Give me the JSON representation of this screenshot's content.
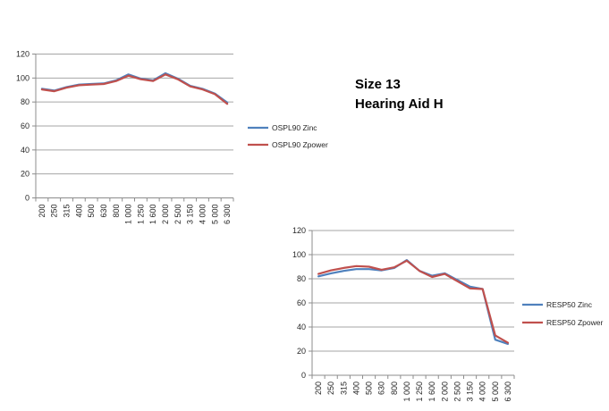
{
  "title": {
    "line1": "Size 13",
    "line2": "Hearing Aid H"
  },
  "colors": {
    "background": "#ffffff",
    "gridline": "#a6a6a6",
    "axis": "#8c8c8c",
    "tick_label": "#262626",
    "series_blue": "#4f81bd",
    "series_red": "#c0504d"
  },
  "chart_data": [
    {
      "type": "line",
      "name": "OSPL90 chart",
      "categories": [
        "200",
        "250",
        "315",
        "400",
        "500",
        "630",
        "800",
        "1 000",
        "1 250",
        "1 600",
        "2 000",
        "2 500",
        "3 150",
        "4 000",
        "5 000",
        "6 300"
      ],
      "xlabel": "",
      "ylabel": "",
      "ylim": [
        0,
        120
      ],
      "yticks": [
        0,
        20,
        40,
        60,
        80,
        100,
        120
      ],
      "grid": true,
      "legend_position": "right",
      "series": [
        {
          "name": "OSPL90 Zinc",
          "color": "#4f81bd",
          "values": [
            91,
            89.5,
            92.5,
            94.5,
            95,
            95.5,
            98,
            103,
            99.5,
            98,
            104,
            99.5,
            93.5,
            91,
            87,
            79.5
          ]
        },
        {
          "name": "OSPL90 Zpower",
          "color": "#c0504d",
          "values": [
            90.5,
            89,
            92,
            94,
            94.5,
            95,
            97.5,
            102,
            99,
            97.5,
            103,
            99,
            93,
            90.5,
            86.5,
            78.5
          ]
        }
      ]
    },
    {
      "type": "line",
      "name": "RESP50 chart",
      "categories": [
        "200",
        "250",
        "315",
        "400",
        "500",
        "630",
        "800",
        "1 000",
        "1 250",
        "1 600",
        "2 000",
        "2 500",
        "3 150",
        "4 000",
        "5 000",
        "6 300"
      ],
      "xlabel": "",
      "ylabel": "",
      "ylim": [
        0,
        120
      ],
      "yticks": [
        0,
        20,
        40,
        60,
        80,
        100,
        120
      ],
      "grid": true,
      "legend_position": "right",
      "series": [
        {
          "name": "RESP50 Zinc",
          "color": "#4f81bd",
          "values": [
            82,
            84.5,
            86.5,
            88,
            88,
            87,
            89,
            95.5,
            86.5,
            82.5,
            84.5,
            79,
            73.5,
            71.5,
            29.5,
            26
          ]
        },
        {
          "name": "RESP50 Zpower",
          "color": "#c0504d",
          "values": [
            84,
            87,
            89,
            90.5,
            90,
            87.5,
            89.5,
            95,
            86.5,
            81.5,
            84,
            78,
            72,
            71.5,
            33,
            27
          ]
        }
      ]
    }
  ]
}
